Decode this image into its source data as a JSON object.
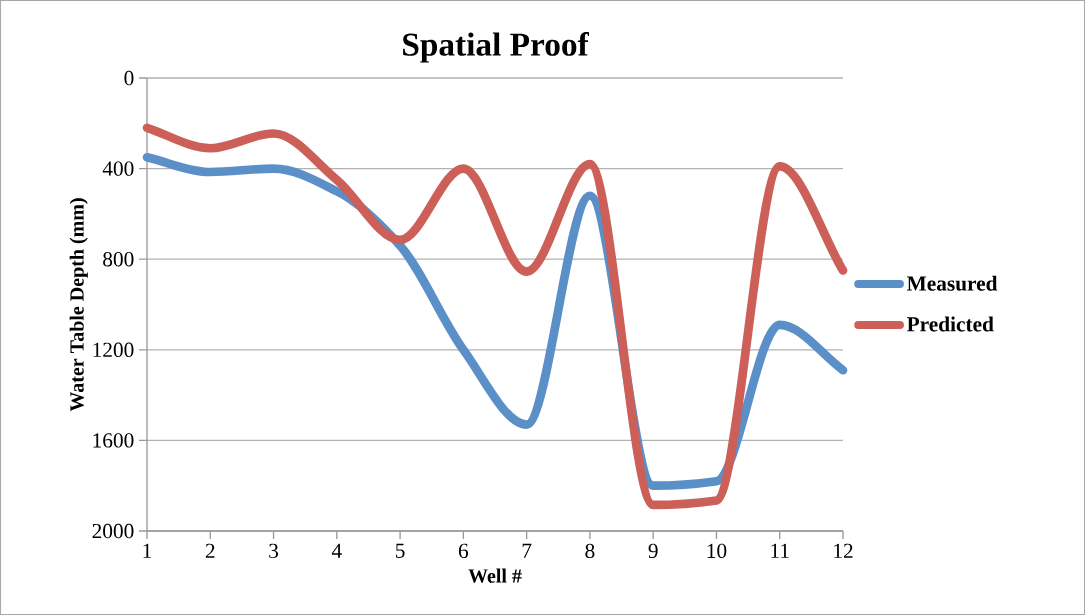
{
  "chart_data": {
    "type": "line",
    "title": "Spatial Proof",
    "xlabel": "Well #",
    "ylabel": "Water Table Depth (mm)",
    "x": [
      1,
      2,
      3,
      4,
      5,
      6,
      7,
      8,
      9,
      10,
      11,
      12
    ],
    "series": [
      {
        "name": "Measured",
        "color": "#5b8fc7",
        "values": [
          350,
          415,
          400,
          500,
          740,
          1200,
          1530,
          520,
          1800,
          1780,
          1090,
          1290
        ]
      },
      {
        "name": "Predicted",
        "color": "#cc5f58",
        "values": [
          220,
          310,
          245,
          450,
          715,
          400,
          855,
          380,
          1885,
          1865,
          390,
          850
        ]
      }
    ],
    "xlim": [
      1,
      12
    ],
    "ylim": [
      2000,
      0
    ],
    "xticks": [
      1,
      2,
      3,
      4,
      5,
      6,
      7,
      8,
      9,
      10,
      11,
      12
    ],
    "yticks": [
      0,
      400,
      800,
      1200,
      1600,
      2000
    ],
    "grid": "y",
    "legend": "right",
    "line_style": "solid"
  }
}
